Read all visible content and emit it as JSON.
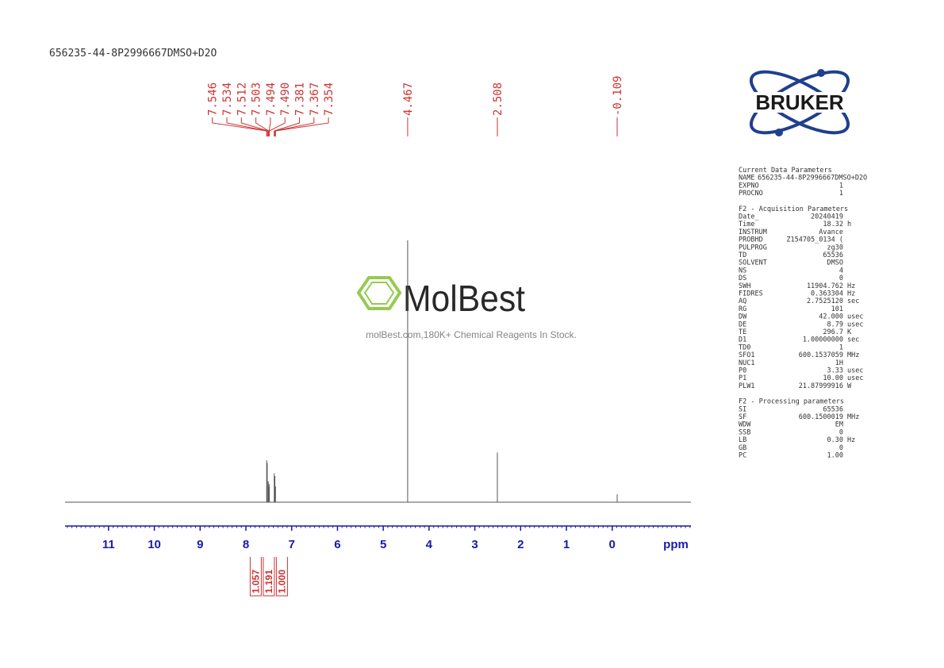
{
  "title": "656235-44-8P2996667DMSO+D2O",
  "logo": "BRUKER",
  "watermark": {
    "brand": "MolBest",
    "tagline": "molBest.com,180K+ Chemical Reagents In Stock."
  },
  "chart_data": {
    "type": "nmr",
    "x_label": "ppm",
    "xlim": [
      11.95,
      -1.72
    ],
    "xticks": [
      11,
      10,
      9,
      8,
      7,
      6,
      5,
      4,
      3,
      2,
      1,
      0
    ],
    "ylim": [
      0,
      100
    ],
    "color": "#555555",
    "label_color": "#cc3333",
    "axis_color": "#1a1aa6",
    "peaks": [
      {
        "value": 7.546,
        "label": "7.546"
      },
      {
        "value": 7.534,
        "label": "7.534"
      },
      {
        "value": 7.512,
        "label": "7.512"
      },
      {
        "value": 7.503,
        "label": "7.503"
      },
      {
        "value": 7.494,
        "label": "7.494"
      },
      {
        "value": 7.49,
        "label": "7.490"
      },
      {
        "value": 7.381,
        "label": "7.381"
      },
      {
        "value": 7.367,
        "label": "7.367"
      },
      {
        "value": 7.354,
        "label": "7.354"
      },
      {
        "value": 4.467,
        "label": "4.467"
      },
      {
        "value": 2.508,
        "label": "2.508"
      },
      {
        "value": -0.109,
        "label": "-0.109"
      }
    ],
    "intensities": [
      16,
      15,
      8,
      6,
      7,
      6,
      11,
      10,
      6,
      100,
      19,
      3
    ],
    "integrals": {
      "values": [
        1.057,
        1.191,
        1
      ],
      "value_labels": [
        "1.057",
        "1.191",
        "1.000"
      ]
    }
  },
  "parameters": [
    {
      "title": "Current Data Parameters",
      "rows": [
        [
          "NAME",
          "656235-44-8P2996667DMSO+D2O"
        ],
        [
          "EXPNO",
          "1"
        ],
        [
          "PROCNO",
          "1"
        ]
      ]
    },
    {
      "title": "F2 - Acquisition Parameters",
      "rows": [
        [
          "Date_",
          "20240419"
        ],
        [
          "Time",
          "18.32",
          "h"
        ],
        [
          "INSTRUM",
          "Avance"
        ],
        [
          "PROBHD",
          "Z154705_0134 ("
        ],
        [
          "PULPROG",
          "zg30"
        ],
        [
          "TD",
          "65536"
        ],
        [
          "SOLVENT",
          "DMSO"
        ],
        [
          "NS",
          "4"
        ],
        [
          "DS",
          "0"
        ],
        [
          "SWH",
          "11904.762",
          "Hz"
        ],
        [
          "FIDRES",
          "0.363304",
          "Hz"
        ],
        [
          "AQ",
          "2.7525120",
          "sec"
        ],
        [
          "RG",
          "101"
        ],
        [
          "DW",
          "42.000",
          "usec"
        ],
        [
          "DE",
          "8.79",
          "usec"
        ],
        [
          "TE",
          "296.7",
          "K"
        ],
        [
          "D1",
          "1.00000000",
          "sec"
        ],
        [
          "TD0",
          "1"
        ],
        [
          "SFO1",
          "600.1537059",
          "MHz"
        ],
        [
          "NUC1",
          "1H"
        ],
        [
          "P0",
          "3.33",
          "usec"
        ],
        [
          "P1",
          "10.00",
          "usec"
        ],
        [
          "PLW1",
          "21.87999916",
          "W"
        ]
      ]
    },
    {
      "title": "F2 - Processing parameters",
      "rows": [
        [
          "SI",
          "65536"
        ],
        [
          "SF",
          "600.1500019",
          "MHz"
        ],
        [
          "WDW",
          "EM"
        ],
        [
          "SSB",
          "0"
        ],
        [
          "LB",
          "0.30",
          "Hz"
        ],
        [
          "GB",
          "0"
        ],
        [
          "PC",
          "1.00"
        ]
      ]
    }
  ]
}
